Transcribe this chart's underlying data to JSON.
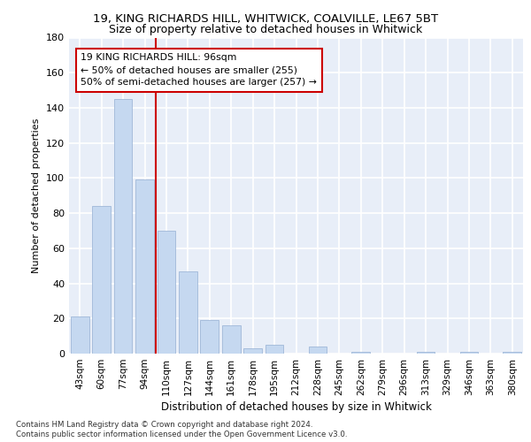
{
  "title1": "19, KING RICHARDS HILL, WHITWICK, COALVILLE, LE67 5BT",
  "title2": "Size of property relative to detached houses in Whitwick",
  "xlabel": "Distribution of detached houses by size in Whitwick",
  "ylabel": "Number of detached properties",
  "categories": [
    "43sqm",
    "60sqm",
    "77sqm",
    "94sqm",
    "110sqm",
    "127sqm",
    "144sqm",
    "161sqm",
    "178sqm",
    "195sqm",
    "212sqm",
    "228sqm",
    "245sqm",
    "262sqm",
    "279sqm",
    "296sqm",
    "313sqm",
    "329sqm",
    "346sqm",
    "363sqm",
    "380sqm"
  ],
  "values": [
    21,
    84,
    145,
    99,
    70,
    47,
    19,
    16,
    3,
    5,
    0,
    4,
    0,
    1,
    0,
    0,
    1,
    0,
    1,
    0,
    1
  ],
  "bar_color": "#c5d8f0",
  "bar_edge_color": "#a0b8d8",
  "ylim": [
    0,
    180
  ],
  "yticks": [
    0,
    20,
    40,
    60,
    80,
    100,
    120,
    140,
    160,
    180
  ],
  "property_bar_index": 3,
  "vline_color": "#cc0000",
  "annotation_text_line1": "19 KING RICHARDS HILL: 96sqm",
  "annotation_text_line2": "← 50% of detached houses are smaller (255)",
  "annotation_text_line3": "50% of semi-detached houses are larger (257) →",
  "annotation_box_color": "#cc0000",
  "footnote1": "Contains HM Land Registry data © Crown copyright and database right 2024.",
  "footnote2": "Contains public sector information licensed under the Open Government Licence v3.0.",
  "background_color": "#e8eef8",
  "grid_color": "#ffffff"
}
